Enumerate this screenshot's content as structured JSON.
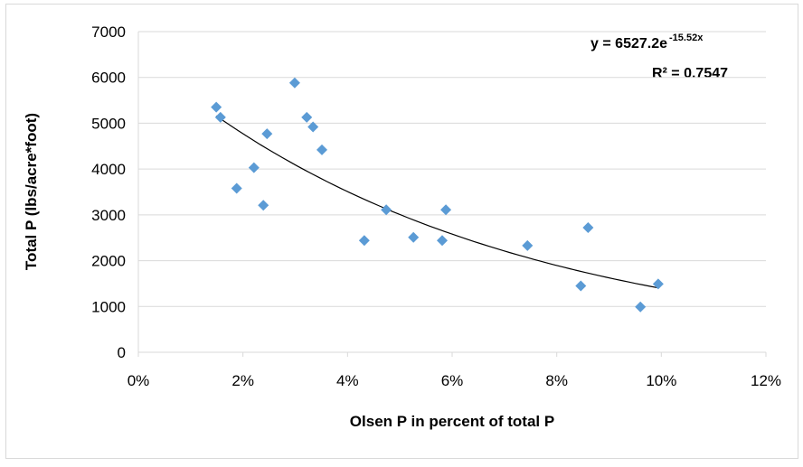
{
  "chart_data": {
    "type": "scatter",
    "x_label": "Olsen P in percent of total P",
    "y_label": "Total P (lbs/acre*foot)",
    "equation": "y = 6527.2e",
    "equation_exponent": "-15.52x",
    "r_squared": "R² = 0.7547",
    "trendline": "exponential",
    "color": "#5b9bd5",
    "grid": true,
    "x": [
      0.0149,
      0.0157,
      0.0188,
      0.0221,
      0.0239,
      0.0246,
      0.0299,
      0.0322,
      0.0334,
      0.0351,
      0.0432,
      0.0474,
      0.0526,
      0.0581,
      0.0588,
      0.0744,
      0.0846,
      0.086,
      0.096,
      0.0994
    ],
    "values": [
      5350,
      5130,
      3580,
      4030,
      3210,
      4770,
      5880,
      5130,
      4920,
      4420,
      2440,
      3110,
      2510,
      2440,
      3110,
      2330,
      1450,
      2720,
      990,
      1490
    ],
    "xlim": [
      0,
      0.12
    ],
    "xticks": [
      {
        "value": 0,
        "label": "0%"
      },
      {
        "value": 0.02,
        "label": "2%"
      },
      {
        "value": 0.04,
        "label": "4%"
      },
      {
        "value": 0.06,
        "label": "6%"
      },
      {
        "value": 0.08,
        "label": "8%"
      },
      {
        "value": 0.1,
        "label": "10%"
      },
      {
        "value": 0.12,
        "label": "12%"
      }
    ],
    "ylim": [
      0,
      7000
    ],
    "yticks": [
      0,
      1000,
      2000,
      3000,
      4000,
      5000,
      6000,
      7000
    ]
  }
}
